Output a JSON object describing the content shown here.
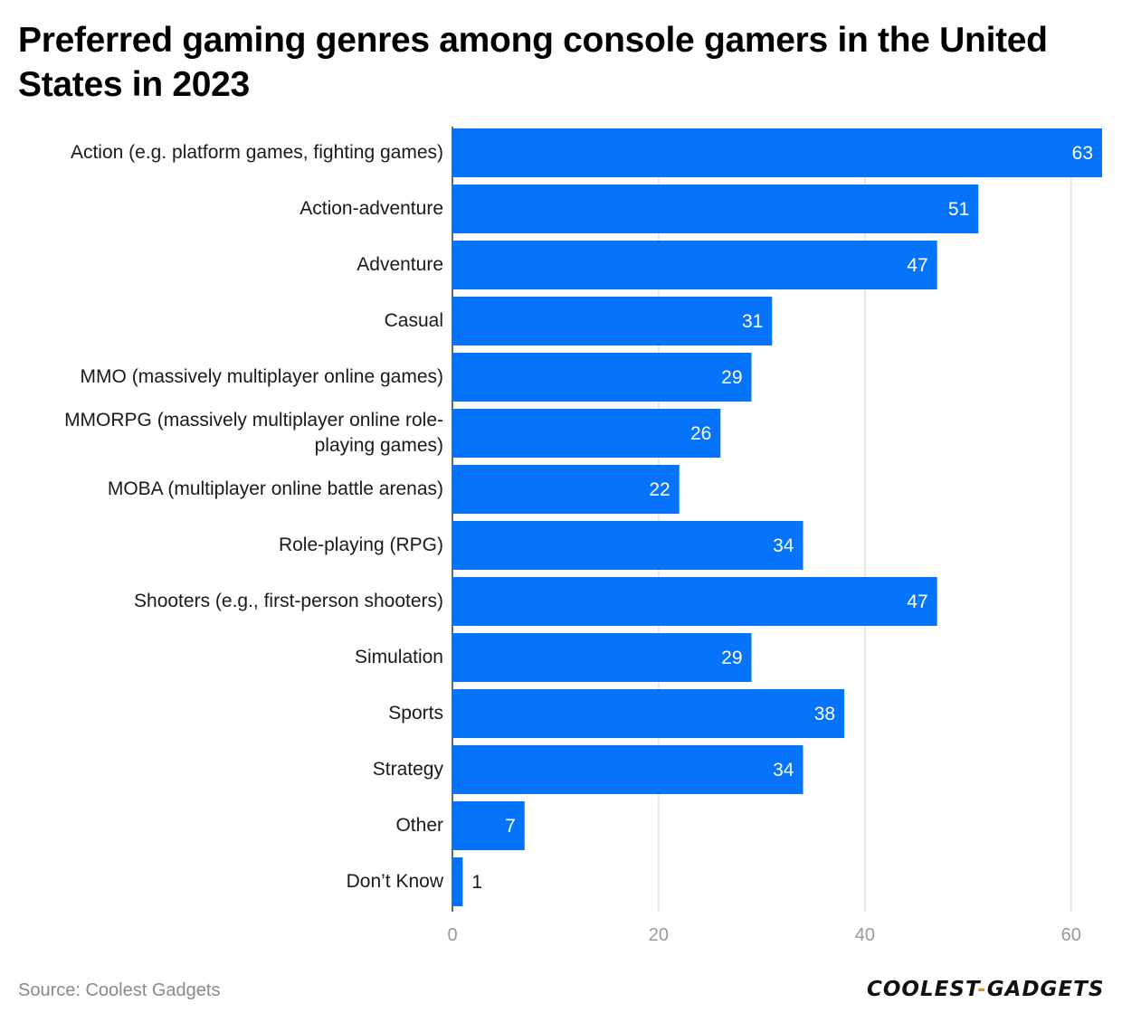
{
  "chart_data": {
    "type": "bar",
    "orientation": "horizontal",
    "title": "Preferred gaming genres among console gamers in the United States in 2023",
    "categories": [
      "Action (e.g. platform games, fighting games)",
      "Action-adventure",
      "Adventure",
      "Casual",
      "MMO (massively multiplayer online games)",
      "MMORPG (massively multiplayer online role-playing games)",
      "MOBA (multiplayer online battle arenas)",
      "Role-playing (RPG)",
      "Shooters (e.g., first-person shooters)",
      "Simulation",
      "Sports",
      "Strategy",
      "Other",
      "Don’t Know"
    ],
    "values": [
      63,
      51,
      47,
      31,
      29,
      26,
      22,
      34,
      47,
      29,
      38,
      34,
      7,
      1
    ],
    "xlim": [
      0,
      63
    ],
    "xticks": [
      0,
      20,
      40,
      60
    ],
    "xlabel": "",
    "ylabel": "",
    "grid": true,
    "bar_color": "#0574fa"
  },
  "footer": {
    "source": "Source: Coolest Gadgets",
    "logo_left": "COOLEST",
    "logo_dash": "-",
    "logo_right": "GADGETS"
  }
}
